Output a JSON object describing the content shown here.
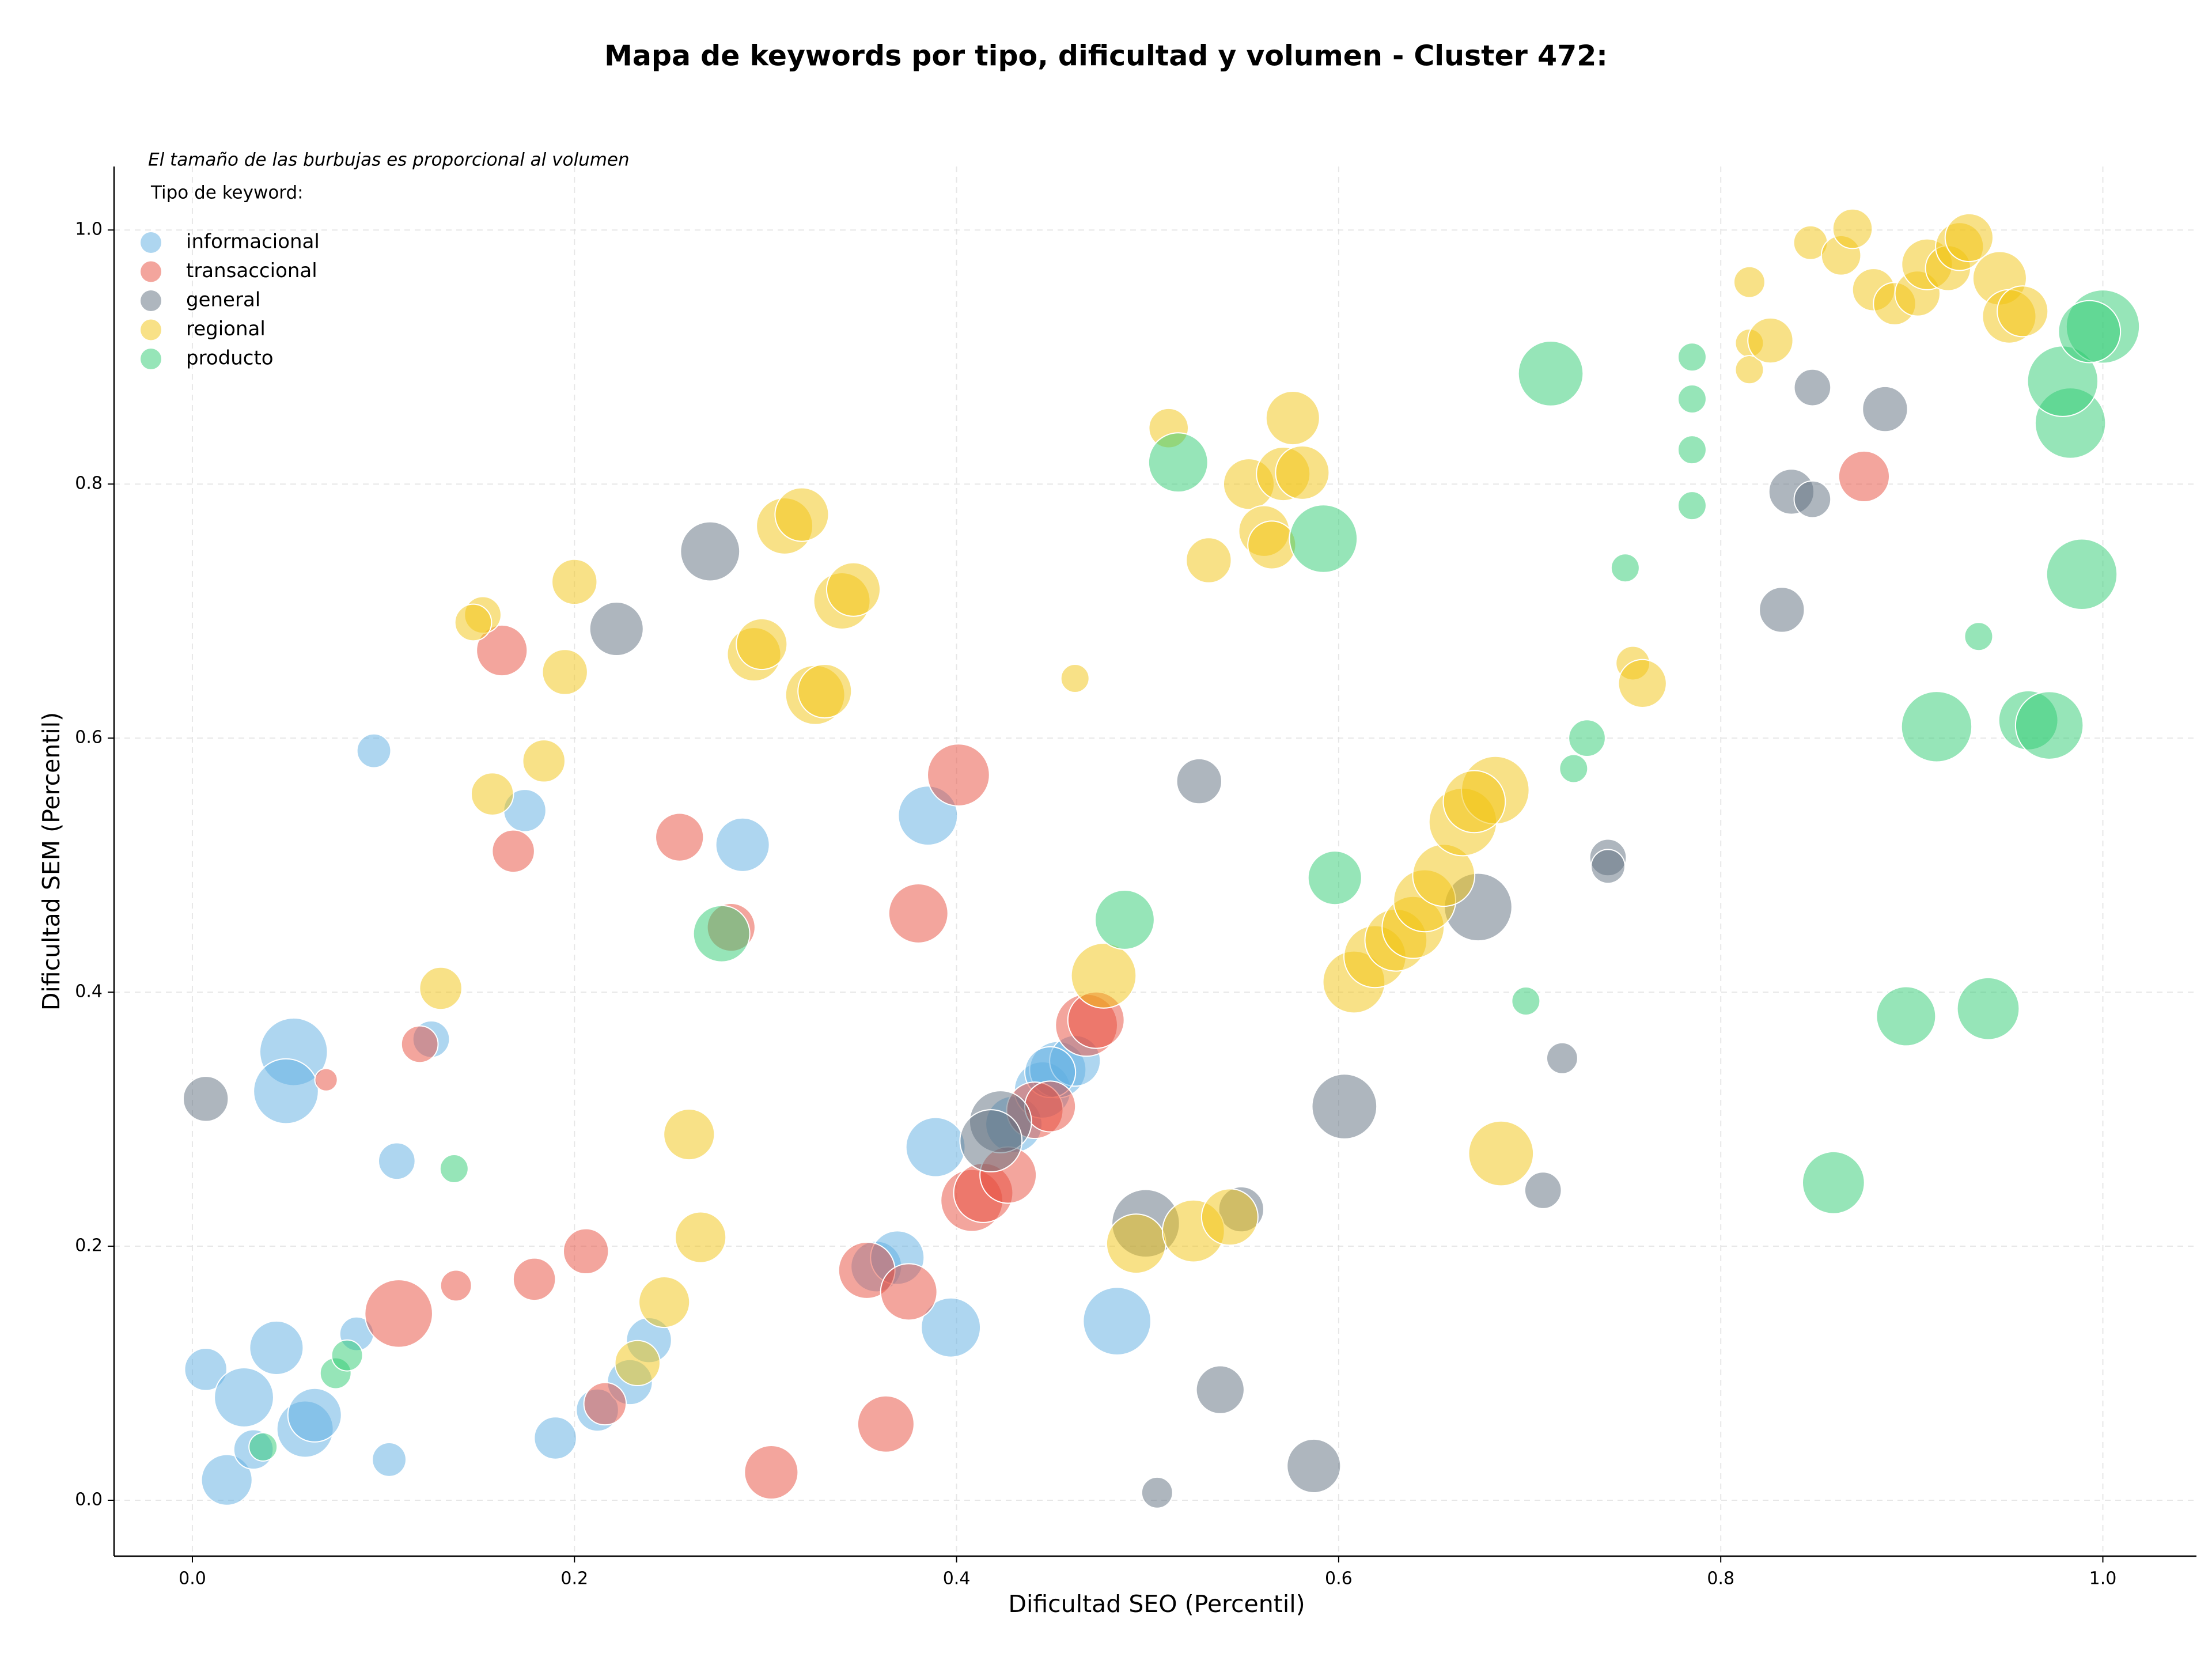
{
  "chart_data": {
    "type": "bubble",
    "title": "Mapa de keywords por tipo, dificultad y volumen - Cluster 472:",
    "annotation": "El tamaño de las burbujas es proporcional al volumen",
    "legend_title": "Tipo de keyword:",
    "legend": "upper left",
    "grid": true,
    "x_label": "Dificultad SEO (Percentil)",
    "y_label": "Dificultad SEM (Percentil)",
    "xlim": [
      -0.041,
      1.049
    ],
    "ylim": [
      -0.044,
      1.05
    ],
    "xticks": [
      {
        "value": 0,
        "label": "0.0"
      },
      0.2,
      0.4,
      0.6,
      0.8,
      {
        "value": 1,
        "label": "1.0"
      }
    ],
    "yticks": [
      {
        "value": 0,
        "label": "0.0"
      },
      0.2,
      0.4,
      0.6,
      0.8,
      {
        "value": 1,
        "label": "1.0"
      }
    ],
    "series": [
      {
        "name": "informacional",
        "color": "#5dade2",
        "x": [
          0.095,
          0.174,
          0.288,
          0.385,
          0.053,
          0.049,
          0.125,
          0.107,
          0.007,
          0.044,
          0.027,
          0.018,
          0.032,
          0.059,
          0.064,
          0.086,
          0.103,
          0.19,
          0.212,
          0.229,
          0.239,
          0.358,
          0.369,
          0.397,
          0.389,
          0.484,
          0.43,
          0.445,
          0.453,
          0.462,
          0.449
        ],
        "values": [
          0.59,
          0.543,
          0.516,
          0.539,
          0.353,
          0.322,
          0.363,
          0.267,
          0.103,
          0.12,
          0.081,
          0.016,
          0.04,
          0.056,
          0.067,
          0.131,
          0.032,
          0.049,
          0.071,
          0.093,
          0.126,
          0.184,
          0.191,
          0.136,
          0.278,
          0.141,
          0.296,
          0.323,
          0.339,
          0.346,
          0.337
        ],
        "sizes": [
          144,
          225,
          361,
          441,
          576,
          529,
          169,
          169,
          225,
          361,
          441,
          324,
          196,
          400,
          361,
          144,
          144,
          225,
          225,
          256,
          256,
          324,
          361,
          441,
          441,
          576,
          400,
          400,
          400,
          324,
          324
        ]
      },
      {
        "name": "transaccional",
        "color": "#e74c3c",
        "x": [
          0.162,
          0.168,
          0.255,
          0.401,
          0.282,
          0.38,
          0.119,
          0.07,
          0.108,
          0.138,
          0.179,
          0.206,
          0.216,
          0.303,
          0.363,
          0.353,
          0.375,
          0.408,
          0.414,
          0.427,
          0.441,
          0.449,
          0.468,
          0.473,
          0.875
        ],
        "values": [
          0.669,
          0.511,
          0.522,
          0.571,
          0.451,
          0.462,
          0.359,
          0.331,
          0.147,
          0.169,
          0.174,
          0.196,
          0.076,
          0.022,
          0.06,
          0.181,
          0.164,
          0.236,
          0.242,
          0.256,
          0.307,
          0.31,
          0.374,
          0.378,
          0.806
        ],
        "sizes": [
          324,
          225,
          289,
          484,
          289,
          441,
          169,
          64,
          576,
          121,
          225,
          256,
          225,
          361,
          400,
          400,
          400,
          484,
          441,
          400,
          400,
          324,
          484,
          400,
          324
        ]
      },
      {
        "name": "general",
        "color": "#5d6d7e",
        "x": [
          0.007,
          0.222,
          0.271,
          0.527,
          0.673,
          0.741,
          0.741,
          0.603,
          0.717,
          0.707,
          0.499,
          0.549,
          0.538,
          0.587,
          0.505,
          0.423,
          0.418,
          0.832,
          0.837,
          0.848,
          0.848,
          0.886
        ],
        "values": [
          0.316,
          0.686,
          0.747,
          0.566,
          0.467,
          0.506,
          0.499,
          0.31,
          0.348,
          0.244,
          0.218,
          0.229,
          0.087,
          0.027,
          0.006,
          0.298,
          0.283,
          0.701,
          0.794,
          0.788,
          0.876,
          0.859
        ],
        "sizes": [
          256,
          361,
          441,
          256,
          576,
          169,
          144,
          529,
          121,
          169,
          576,
          256,
          289,
          361,
          121,
          484,
          484,
          256,
          256,
          169,
          169,
          256
        ]
      },
      {
        "name": "regional",
        "color": "#f1c40f",
        "x": [
          0.152,
          0.147,
          0.2,
          0.195,
          0.184,
          0.157,
          0.13,
          0.26,
          0.266,
          0.247,
          0.233,
          0.294,
          0.298,
          0.326,
          0.331,
          0.31,
          0.319,
          0.34,
          0.346,
          0.462,
          0.511,
          0.532,
          0.553,
          0.571,
          0.576,
          0.581,
          0.561,
          0.565,
          0.477,
          0.494,
          0.524,
          0.543,
          0.685,
          0.608,
          0.619,
          0.63,
          0.639,
          0.645,
          0.655,
          0.665,
          0.682,
          0.671,
          0.754,
          0.759,
          0.815,
          0.815,
          0.815,
          0.826,
          0.847,
          0.863,
          0.869,
          0.88,
          0.891,
          0.903,
          0.908,
          0.919,
          0.925,
          0.93,
          0.946,
          0.951,
          0.958
        ],
        "values": [
          0.697,
          0.691,
          0.723,
          0.652,
          0.582,
          0.556,
          0.403,
          0.288,
          0.207,
          0.156,
          0.108,
          0.666,
          0.674,
          0.634,
          0.637,
          0.767,
          0.776,
          0.708,
          0.717,
          0.647,
          0.844,
          0.74,
          0.8,
          0.808,
          0.852,
          0.809,
          0.763,
          0.752,
          0.413,
          0.202,
          0.212,
          0.223,
          0.273,
          0.408,
          0.428,
          0.441,
          0.451,
          0.472,
          0.492,
          0.534,
          0.559,
          0.55,
          0.659,
          0.643,
          0.959,
          0.911,
          0.89,
          0.913,
          0.99,
          0.98,
          1.001,
          0.953,
          0.942,
          0.95,
          0.973,
          0.97,
          0.987,
          0.994,
          0.962,
          0.932,
          0.936
        ],
        "sizes": [
          169,
          169,
          256,
          256,
          225,
          225,
          225,
          324,
          324,
          324,
          256,
          361,
          324,
          441,
          361,
          400,
          361,
          400,
          361,
          100,
          196,
          256,
          324,
          361,
          361,
          361,
          324,
          289,
          529,
          441,
          484,
          400,
          529,
          484,
          484,
          484,
          484,
          484,
          484,
          576,
          576,
          484,
          144,
          289,
          121,
          100,
          100,
          256,
          144,
          196,
          196,
          225,
          225,
          256,
          324,
          256,
          289,
          289,
          361,
          361,
          324
        ]
      },
      {
        "name": "producto",
        "color": "#2ecc71",
        "x": [
          0.037,
          0.075,
          0.081,
          0.137,
          0.277,
          0.488,
          0.598,
          0.516,
          0.592,
          0.711,
          0.785,
          0.785,
          0.785,
          0.785,
          0.75,
          0.723,
          0.73,
          0.698,
          0.859,
          0.897,
          0.94,
          0.913,
          0.935,
          0.989,
          0.961,
          0.972,
          0.983,
          0.979,
          1.0,
          0.993
        ],
        "values": [
          0.042,
          0.1,
          0.114,
          0.261,
          0.446,
          0.457,
          0.49,
          0.817,
          0.757,
          0.887,
          0.9,
          0.867,
          0.827,
          0.783,
          0.734,
          0.576,
          0.6,
          0.393,
          0.25,
          0.381,
          0.387,
          0.609,
          0.68,
          0.729,
          0.614,
          0.61,
          0.848,
          0.881,
          0.924,
          0.92
        ],
        "sizes": [
          100,
          121,
          121,
          100,
          400,
          441,
          361,
          441,
          576,
          529,
          100,
          100,
          100,
          100,
          100,
          100,
          169,
          100,
          484,
          441,
          484,
          625,
          100,
          625,
          441,
          576,
          625,
          625,
          676,
          484
        ]
      }
    ]
  }
}
